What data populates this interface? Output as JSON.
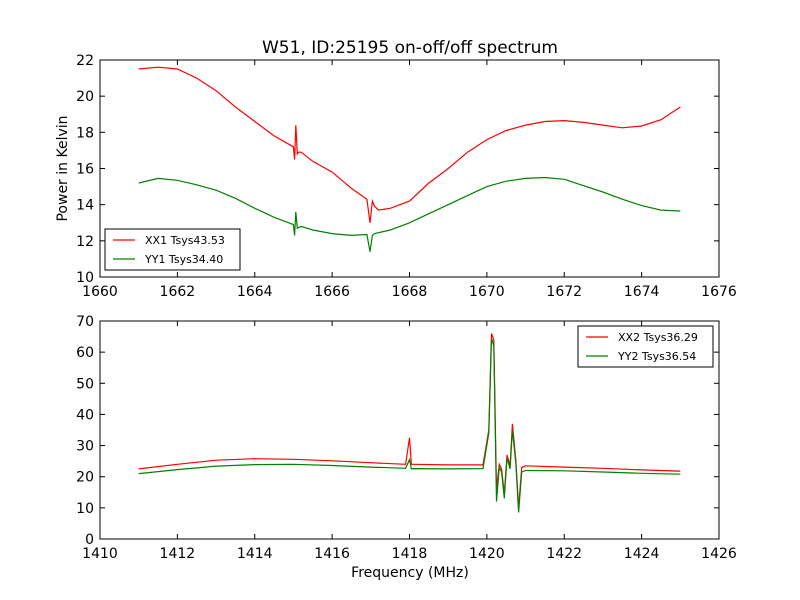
{
  "figure": {
    "title": "W51, ID:25195 on-off/off spectrum",
    "shared_xlabel": "Frequency (MHz)"
  },
  "chart_data": [
    {
      "type": "line",
      "title": "W51, ID:25195 on-off/off spectrum",
      "xlabel": "",
      "ylabel": "Power in Kelvin",
      "xlim": [
        1660,
        1676
      ],
      "ylim": [
        10,
        22
      ],
      "xticks": [
        1660,
        1662,
        1664,
        1666,
        1668,
        1670,
        1672,
        1674,
        1676
      ],
      "yticks": [
        10,
        12,
        14,
        16,
        18,
        20,
        22
      ],
      "grid": false,
      "legend_position": "lower-left",
      "series": [
        {
          "name": "XX1 Tsys43.53",
          "color": "#ff0000",
          "x": [
            1661.0,
            1661.5,
            1662.0,
            1662.5,
            1663.0,
            1663.5,
            1664.0,
            1664.5,
            1665.0,
            1665.03,
            1665.06,
            1665.1,
            1665.13,
            1665.2,
            1665.5,
            1666.0,
            1666.5,
            1666.9,
            1666.98,
            1667.04,
            1667.1,
            1667.2,
            1667.5,
            1668.0,
            1668.5,
            1669.0,
            1669.5,
            1670.0,
            1670.5,
            1671.0,
            1671.5,
            1672.0,
            1672.5,
            1673.0,
            1673.5,
            1674.0,
            1674.5,
            1675.0
          ],
          "values": [
            21.5,
            21.6,
            21.5,
            21.0,
            20.3,
            19.4,
            18.6,
            17.8,
            17.2,
            16.5,
            18.4,
            16.8,
            16.9,
            16.9,
            16.4,
            15.8,
            14.9,
            14.3,
            13.0,
            14.2,
            13.9,
            13.7,
            13.8,
            14.2,
            15.2,
            16.0,
            16.9,
            17.6,
            18.1,
            18.4,
            18.6,
            18.65,
            18.55,
            18.4,
            18.25,
            18.35,
            18.7,
            19.4
          ]
        },
        {
          "name": "YY1 Tsys34.40",
          "color": "#008000",
          "x": [
            1661.0,
            1661.5,
            1662.0,
            1662.5,
            1663.0,
            1663.5,
            1664.0,
            1664.5,
            1665.0,
            1665.03,
            1665.06,
            1665.1,
            1665.2,
            1665.5,
            1666.0,
            1666.5,
            1666.9,
            1666.98,
            1667.04,
            1667.1,
            1667.5,
            1668.0,
            1668.5,
            1669.0,
            1669.5,
            1670.0,
            1670.5,
            1671.0,
            1671.5,
            1672.0,
            1672.5,
            1673.0,
            1673.5,
            1674.0,
            1674.5,
            1675.0
          ],
          "values": [
            15.2,
            15.45,
            15.35,
            15.1,
            14.8,
            14.35,
            13.8,
            13.3,
            12.9,
            12.3,
            13.6,
            12.7,
            12.8,
            12.6,
            12.4,
            12.3,
            12.35,
            11.4,
            12.3,
            12.4,
            12.6,
            13.0,
            13.5,
            14.0,
            14.5,
            15.0,
            15.3,
            15.45,
            15.5,
            15.4,
            15.05,
            14.7,
            14.3,
            13.95,
            13.7,
            13.65
          ]
        }
      ]
    },
    {
      "type": "line",
      "title": "",
      "xlabel": "Frequency (MHz)",
      "ylabel": "",
      "xlim": [
        1410,
        1426
      ],
      "ylim": [
        0,
        70
      ],
      "xticks": [
        1410,
        1412,
        1414,
        1416,
        1418,
        1420,
        1422,
        1424,
        1426
      ],
      "yticks": [
        0,
        10,
        20,
        30,
        40,
        50,
        60,
        70
      ],
      "grid": false,
      "legend_position": "top-right",
      "series": [
        {
          "name": "XX2 Tsys36.29",
          "color": "#ff0000",
          "x": [
            1411.0,
            1412.0,
            1413.0,
            1414.0,
            1415.0,
            1416.0,
            1417.0,
            1417.9,
            1418.0,
            1418.05,
            1418.1,
            1419.0,
            1419.9,
            1420.05,
            1420.12,
            1420.18,
            1420.25,
            1420.32,
            1420.38,
            1420.45,
            1420.52,
            1420.6,
            1420.66,
            1420.75,
            1420.82,
            1420.9,
            1421.0,
            1422.0,
            1423.0,
            1424.0,
            1425.0
          ],
          "values": [
            22.5,
            24.0,
            25.3,
            25.8,
            25.6,
            25.1,
            24.5,
            24.0,
            32.5,
            24.0,
            24.0,
            23.8,
            23.8,
            35.0,
            66.0,
            64.0,
            16.0,
            24.0,
            22.5,
            14.5,
            27.0,
            23.5,
            37.0,
            25.0,
            10.0,
            23.0,
            23.5,
            23.1,
            22.7,
            22.2,
            21.8
          ]
        },
        {
          "name": "YY2 Tsys36.54",
          "color": "#008000",
          "x": [
            1411.0,
            1412.0,
            1413.0,
            1414.0,
            1415.0,
            1416.0,
            1417.0,
            1417.9,
            1418.0,
            1418.05,
            1418.1,
            1419.0,
            1419.9,
            1420.05,
            1420.12,
            1420.18,
            1420.25,
            1420.32,
            1420.38,
            1420.45,
            1420.52,
            1420.6,
            1420.66,
            1420.75,
            1420.82,
            1420.9,
            1421.0,
            1422.0,
            1423.0,
            1424.0,
            1425.0
          ],
          "values": [
            21.0,
            22.3,
            23.4,
            23.9,
            24.0,
            23.6,
            23.1,
            22.7,
            25.5,
            22.5,
            22.6,
            22.5,
            22.6,
            34.0,
            64.5,
            62.0,
            12.0,
            23.0,
            21.5,
            13.0,
            26.0,
            22.5,
            35.0,
            24.0,
            8.5,
            21.5,
            22.0,
            21.9,
            21.5,
            21.1,
            20.8
          ]
        }
      ]
    }
  ]
}
